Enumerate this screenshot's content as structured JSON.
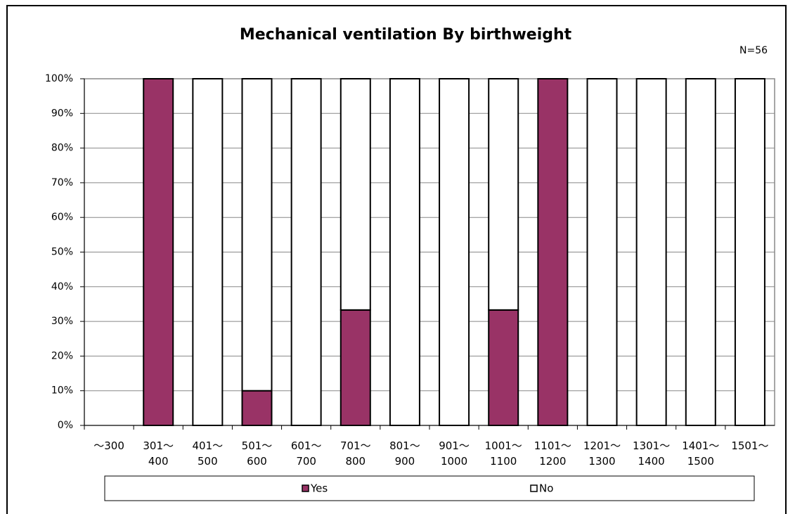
{
  "chart_data": {
    "type": "stacked_bar",
    "title": "Mechanical ventilation By birthweight",
    "annotation": "N=56",
    "categories": [
      "～300",
      "301～\n400",
      "401～\n500",
      "501～\n600",
      "601～\n700",
      "701～\n800",
      "801～\n900",
      "901～\n1000",
      "1001～\n1100",
      "1101～\n1200",
      "1201～\n1300",
      "1301～\n1400",
      "1401～\n1500",
      "1501～"
    ],
    "series": [
      {
        "name": "Yes",
        "color": "#993366",
        "values": [
          0,
          100,
          0,
          10,
          0,
          33.3,
          0,
          0,
          33.3,
          100,
          0,
          0,
          0,
          0
        ]
      },
      {
        "name": "No",
        "color": "#ffffff",
        "values": [
          0,
          0,
          100,
          90,
          100,
          66.7,
          100,
          100,
          66.7,
          0,
          100,
          100,
          100,
          100
        ]
      }
    ],
    "ylim": [
      0,
      100
    ],
    "yticks": [
      {
        "value": 0,
        "label": "0%"
      },
      {
        "value": 10,
        "label": "10%"
      },
      {
        "value": 20,
        "label": "20%"
      },
      {
        "value": 30,
        "label": "30%"
      },
      {
        "value": 40,
        "label": "40%"
      },
      {
        "value": 50,
        "label": "50%"
      },
      {
        "value": 60,
        "label": "60%"
      },
      {
        "value": 70,
        "label": "70%"
      },
      {
        "value": 80,
        "label": "80%"
      },
      {
        "value": 90,
        "label": "90%"
      },
      {
        "value": 100,
        "label": "100%"
      }
    ],
    "grid": true,
    "legend": "bottom"
  }
}
